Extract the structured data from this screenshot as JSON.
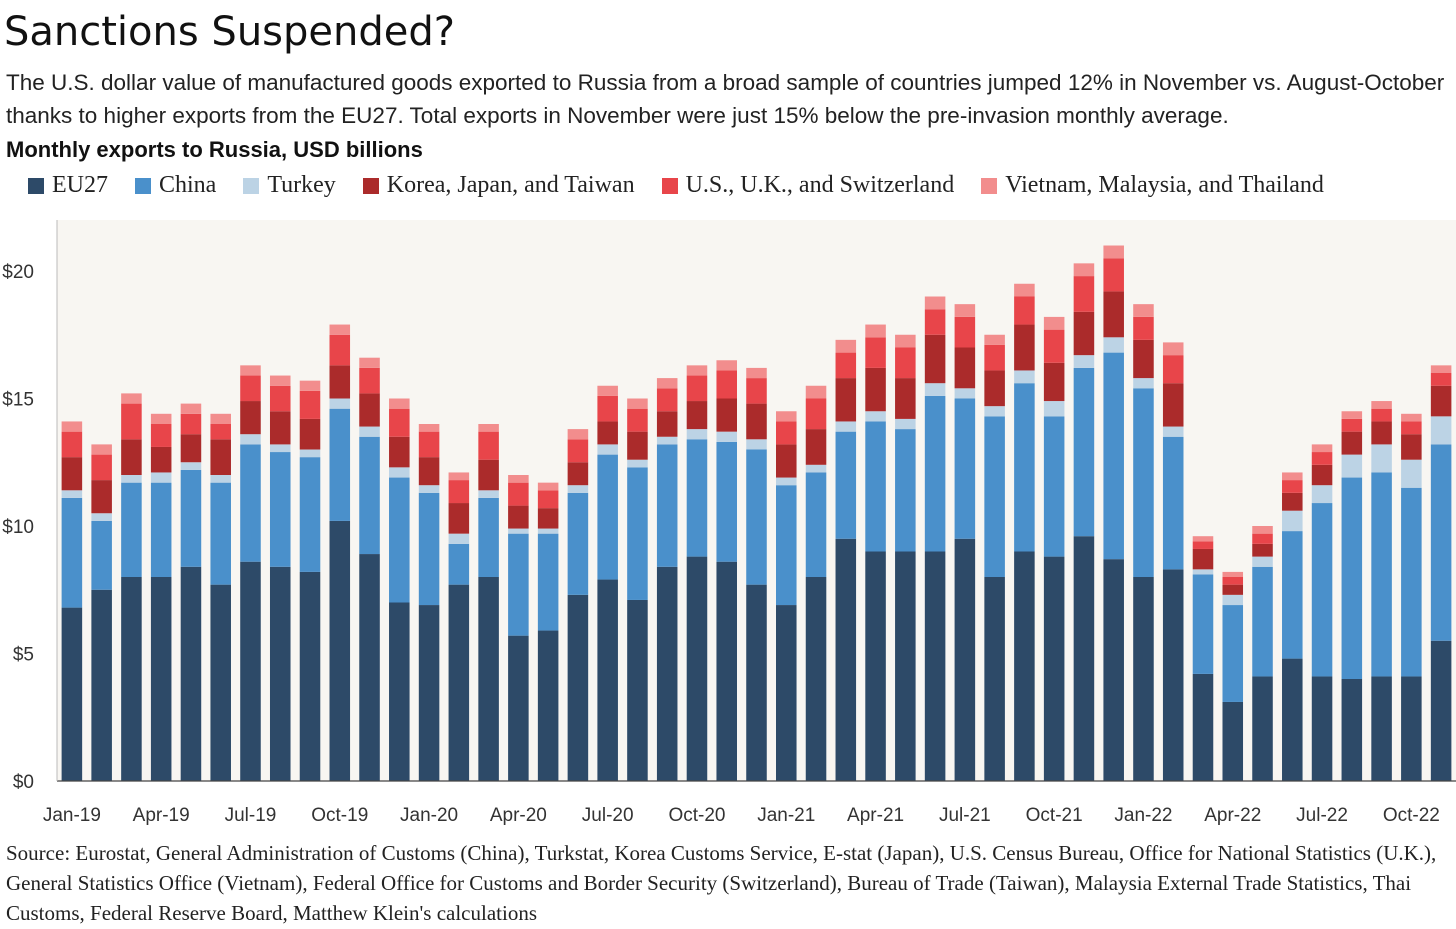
{
  "title": "Sanctions Suspended?",
  "subtitle": "The U.S. dollar value of manufactured goods exported to Russia from a broad sample of countries jumped 12% in November vs. August-October thanks to higher exports from the EU27. Total exports in November were just 15% below the pre-invasion monthly average.",
  "chart_label": "Monthly exports to Russia, USD billions",
  "source": "Source: Eurostat, General Administration of Customs (China), Turkstat, Korea Customs Service, E-stat (Japan), U.S. Census Bureau, Office for National Statistics (U.K.), General Statistics Office (Vietnam), Federal Office for Customs and Border Security (Switzerland), Bureau of Trade (Taiwan), Malaysia External Trade Statistics, Thai Customs, Federal Reserve Board, Matthew Klein's calculations",
  "chart_data": {
    "type": "bar",
    "stacked": true,
    "plot_background": "#f8f6f2",
    "categories": [
      "Jan-19",
      "Feb-19",
      "Mar-19",
      "Apr-19",
      "May-19",
      "Jun-19",
      "Jul-19",
      "Aug-19",
      "Sep-19",
      "Oct-19",
      "Nov-19",
      "Dec-19",
      "Jan-20",
      "Feb-20",
      "Mar-20",
      "Apr-20",
      "May-20",
      "Jun-20",
      "Jul-20",
      "Aug-20",
      "Sep-20",
      "Oct-20",
      "Nov-20",
      "Dec-20",
      "Jan-21",
      "Feb-21",
      "Mar-21",
      "Apr-21",
      "May-21",
      "Jun-21",
      "Jul-21",
      "Aug-21",
      "Sep-21",
      "Oct-21",
      "Nov-21",
      "Dec-21",
      "Jan-22",
      "Feb-22",
      "Mar-22",
      "Apr-22",
      "May-22",
      "Jun-22",
      "Jul-22",
      "Aug-22",
      "Sep-22",
      "Oct-22",
      "Nov-22"
    ],
    "x_tick_labels": [
      "Jan-19",
      "Apr-19",
      "Jul-19",
      "Oct-19",
      "Jan-20",
      "Apr-20",
      "Jul-20",
      "Oct-20",
      "Jan-21",
      "Apr-21",
      "Jul-21",
      "Oct-21",
      "Jan-22",
      "Apr-22",
      "Jul-22",
      "Oct-22"
    ],
    "x_tick_every": 3,
    "y_ticks": [
      0,
      5,
      10,
      15,
      20
    ],
    "y_tick_labels": [
      "$0",
      "$5",
      "$10",
      "$15",
      "$20"
    ],
    "ylim": [
      0,
      22
    ],
    "series": [
      {
        "name": "EU27",
        "color": "#2d4a68",
        "values": [
          6.8,
          7.5,
          8.0,
          8.0,
          8.4,
          7.7,
          8.6,
          8.4,
          8.2,
          10.2,
          8.9,
          7.0,
          6.9,
          7.7,
          8.0,
          5.7,
          5.9,
          7.3,
          7.9,
          7.1,
          8.4,
          8.8,
          8.6,
          7.7,
          6.9,
          8.0,
          9.5,
          9.0,
          9.0,
          9.0,
          9.5,
          8.0,
          9.0,
          8.8,
          9.6,
          8.7,
          8.0,
          8.3,
          4.2,
          3.1,
          4.1,
          4.8,
          4.1,
          4.0,
          4.1,
          4.1,
          5.5
        ]
      },
      {
        "name": "China",
        "color": "#4a90cb",
        "values": [
          4.3,
          2.7,
          3.7,
          3.7,
          3.8,
          4.0,
          4.6,
          4.5,
          4.5,
          4.4,
          4.6,
          4.9,
          4.4,
          1.6,
          3.1,
          4.0,
          3.8,
          4.0,
          4.9,
          5.2,
          4.8,
          4.6,
          4.7,
          5.3,
          4.7,
          4.1,
          4.2,
          5.1,
          4.8,
          6.1,
          5.5,
          6.3,
          6.6,
          5.5,
          6.6,
          8.1,
          7.4,
          5.2,
          3.9,
          3.8,
          4.3,
          5.0,
          6.8,
          7.9,
          8.0,
          7.4,
          7.7
        ]
      },
      {
        "name": "Turkey",
        "color": "#bcd3e5",
        "values": [
          0.3,
          0.3,
          0.3,
          0.4,
          0.3,
          0.3,
          0.4,
          0.3,
          0.3,
          0.4,
          0.4,
          0.4,
          0.3,
          0.4,
          0.3,
          0.2,
          0.2,
          0.3,
          0.4,
          0.3,
          0.3,
          0.4,
          0.4,
          0.4,
          0.3,
          0.3,
          0.4,
          0.4,
          0.4,
          0.5,
          0.4,
          0.4,
          0.5,
          0.6,
          0.5,
          0.6,
          0.4,
          0.4,
          0.2,
          0.4,
          0.4,
          0.8,
          0.7,
          0.9,
          1.1,
          1.1,
          1.1
        ]
      },
      {
        "name": "Korea, Japan, and Taiwan",
        "color": "#ab2b2b",
        "values": [
          1.3,
          1.3,
          1.4,
          1.0,
          1.1,
          1.4,
          1.3,
          1.3,
          1.2,
          1.3,
          1.3,
          1.2,
          1.1,
          1.2,
          1.2,
          0.9,
          0.8,
          0.9,
          0.9,
          1.1,
          1.0,
          1.1,
          1.3,
          1.4,
          1.3,
          1.4,
          1.7,
          1.7,
          1.6,
          1.9,
          1.6,
          1.4,
          1.8,
          1.5,
          1.7,
          1.8,
          1.5,
          1.7,
          0.8,
          0.4,
          0.5,
          0.7,
          0.8,
          0.9,
          0.9,
          1.0,
          1.2
        ]
      },
      {
        "name": "U.S., U.K., and Switzerland",
        "color": "#e8454a",
        "values": [
          1.0,
          1.0,
          1.4,
          0.9,
          0.8,
          0.6,
          1.0,
          1.0,
          1.1,
          1.2,
          1.0,
          1.1,
          1.0,
          0.9,
          1.1,
          0.9,
          0.7,
          0.9,
          1.0,
          0.9,
          0.9,
          1.0,
          1.1,
          1.0,
          0.9,
          1.2,
          1.0,
          1.2,
          1.2,
          1.0,
          1.2,
          1.0,
          1.1,
          1.3,
          1.4,
          1.3,
          0.9,
          1.1,
          0.3,
          0.3,
          0.4,
          0.5,
          0.5,
          0.5,
          0.5,
          0.5,
          0.5
        ]
      },
      {
        "name": "Vietnam, Malaysia, and Thailand",
        "color": "#f28d8d",
        "values": [
          0.4,
          0.4,
          0.4,
          0.4,
          0.4,
          0.4,
          0.4,
          0.4,
          0.4,
          0.4,
          0.4,
          0.4,
          0.3,
          0.3,
          0.3,
          0.3,
          0.3,
          0.4,
          0.4,
          0.4,
          0.4,
          0.4,
          0.4,
          0.4,
          0.4,
          0.5,
          0.5,
          0.5,
          0.5,
          0.5,
          0.5,
          0.4,
          0.5,
          0.5,
          0.5,
          0.5,
          0.5,
          0.5,
          0.2,
          0.2,
          0.3,
          0.3,
          0.3,
          0.3,
          0.3,
          0.3,
          0.3
        ]
      }
    ]
  }
}
